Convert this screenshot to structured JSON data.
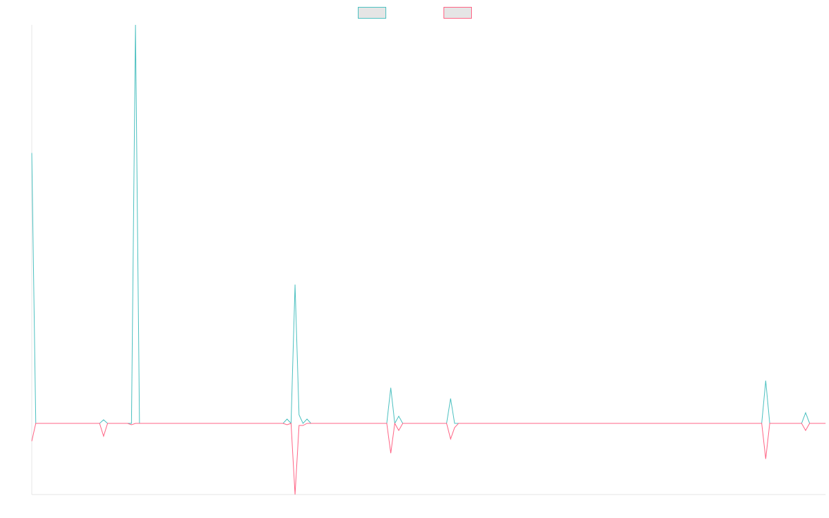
{
  "chart_data": {
    "type": "line",
    "title": "",
    "xlabel": "",
    "ylabel": "",
    "grid": false,
    "legend_position": "top-center",
    "ylim": [
      -100,
      560
    ],
    "n_points": 200,
    "series": [
      {
        "color": "#4bc0c0",
        "fill": "#e5e5e5",
        "points": [
          [
            0,
            380
          ],
          [
            1,
            0
          ],
          [
            18,
            5
          ],
          [
            25,
            0
          ],
          [
            26,
            560
          ],
          [
            27,
            0
          ],
          [
            64,
            6
          ],
          [
            65,
            0
          ],
          [
            66,
            195
          ],
          [
            67,
            12
          ],
          [
            68,
            0
          ],
          [
            69,
            6
          ],
          [
            70,
            0
          ],
          [
            90,
            50
          ],
          [
            91,
            0
          ],
          [
            92,
            10
          ],
          [
            93,
            0
          ],
          [
            100,
            0
          ],
          [
            105,
            35
          ],
          [
            106,
            0
          ],
          [
            184,
            60
          ],
          [
            185,
            0
          ],
          [
            194,
            15
          ],
          [
            195,
            0
          ],
          [
            199,
            0
          ]
        ]
      },
      {
        "color": "#ff6384",
        "fill": "#e5e5e5",
        "points": [
          [
            0,
            -25
          ],
          [
            1,
            0
          ],
          [
            18,
            -18
          ],
          [
            19,
            0
          ],
          [
            25,
            -2
          ],
          [
            26,
            0
          ],
          [
            64,
            -2
          ],
          [
            65,
            0
          ],
          [
            66,
            -100
          ],
          [
            67,
            -3
          ],
          [
            68,
            -3
          ],
          [
            69,
            0
          ],
          [
            90,
            -42
          ],
          [
            91,
            0
          ],
          [
            92,
            -10
          ],
          [
            93,
            0
          ],
          [
            105,
            -22
          ],
          [
            106,
            -6
          ],
          [
            107,
            0
          ],
          [
            184,
            -50
          ],
          [
            185,
            0
          ],
          [
            194,
            -10
          ],
          [
            195,
            0
          ],
          [
            199,
            0
          ]
        ]
      }
    ]
  }
}
